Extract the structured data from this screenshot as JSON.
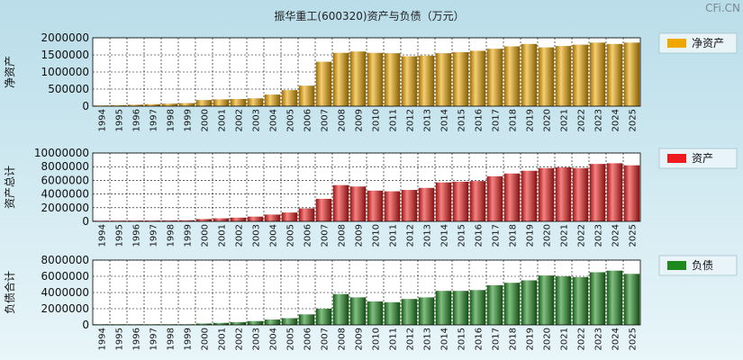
{
  "title": "振华重工(600320)资产与负债（万元）",
  "watermark": "CFi.CN",
  "chart_data": [
    {
      "type": "bar",
      "ylabel": "净资产",
      "legend": "净资产",
      "color": "#f0a800",
      "ylim": [
        0,
        2000000
      ],
      "yticks": [
        0,
        500000,
        1000000,
        1500000,
        2000000
      ],
      "categories": [
        "1994",
        "1995",
        "1996",
        "1997",
        "1998",
        "1999",
        "2000",
        "2001",
        "2002",
        "2003",
        "2004",
        "2005",
        "2006",
        "2007",
        "2008",
        "2009",
        "2010",
        "2011",
        "2012",
        "2013",
        "2014",
        "2015",
        "2016",
        "2017",
        "2018",
        "2019",
        "2020",
        "2021",
        "2022",
        "2023",
        "2024",
        "2025"
      ],
      "values": [
        20000,
        30000,
        45000,
        60000,
        75000,
        90000,
        180000,
        200000,
        210000,
        230000,
        340000,
        470000,
        600000,
        1300000,
        1560000,
        1600000,
        1560000,
        1550000,
        1460000,
        1480000,
        1550000,
        1580000,
        1620000,
        1680000,
        1750000,
        1820000,
        1720000,
        1760000,
        1800000,
        1860000,
        1820000,
        1860000
      ]
    },
    {
      "type": "bar",
      "ylabel": "资产总计",
      "legend": "资产",
      "color": "#ee1c1c",
      "ylim": [
        0,
        10000000
      ],
      "yticks": [
        0,
        2000000,
        4000000,
        6000000,
        8000000,
        10000000
      ],
      "categories": [
        "1994",
        "1995",
        "1996",
        "1997",
        "1998",
        "1999",
        "2000",
        "2001",
        "2002",
        "2003",
        "2004",
        "2005",
        "2006",
        "2007",
        "2008",
        "2009",
        "2010",
        "2011",
        "2012",
        "2013",
        "2014",
        "2015",
        "2016",
        "2017",
        "2018",
        "2019",
        "2020",
        "2021",
        "2022",
        "2023",
        "2024",
        "2025"
      ],
      "values": [
        100000,
        110000,
        120000,
        130000,
        150000,
        170000,
        350000,
        450000,
        550000,
        700000,
        1000000,
        1300000,
        1900000,
        3300000,
        5300000,
        5100000,
        4500000,
        4400000,
        4600000,
        4900000,
        5700000,
        5800000,
        5900000,
        6600000,
        7000000,
        7400000,
        7800000,
        7900000,
        7800000,
        8400000,
        8500000,
        8200000
      ]
    },
    {
      "type": "bar",
      "ylabel": "负债合计",
      "legend": "负债",
      "color": "#1e8a1e",
      "ylim": [
        0,
        8000000
      ],
      "yticks": [
        0,
        2000000,
        4000000,
        6000000,
        8000000
      ],
      "categories": [
        "1994",
        "1995",
        "1996",
        "1997",
        "1998",
        "1999",
        "2000",
        "2001",
        "2002",
        "2003",
        "2004",
        "2005",
        "2006",
        "2007",
        "2008",
        "2009",
        "2010",
        "2011",
        "2012",
        "2013",
        "2014",
        "2015",
        "2016",
        "2017",
        "2018",
        "2019",
        "2020",
        "2021",
        "2022",
        "2023",
        "2024",
        "2025"
      ],
      "values": [
        80000,
        80000,
        80000,
        80000,
        80000,
        80000,
        170000,
        250000,
        340000,
        470000,
        660000,
        830000,
        1300000,
        2000000,
        3800000,
        3400000,
        2900000,
        2800000,
        3200000,
        3400000,
        4200000,
        4200000,
        4300000,
        4900000,
        5200000,
        5500000,
        6100000,
        6000000,
        5900000,
        6500000,
        6700000,
        6300000
      ]
    }
  ]
}
